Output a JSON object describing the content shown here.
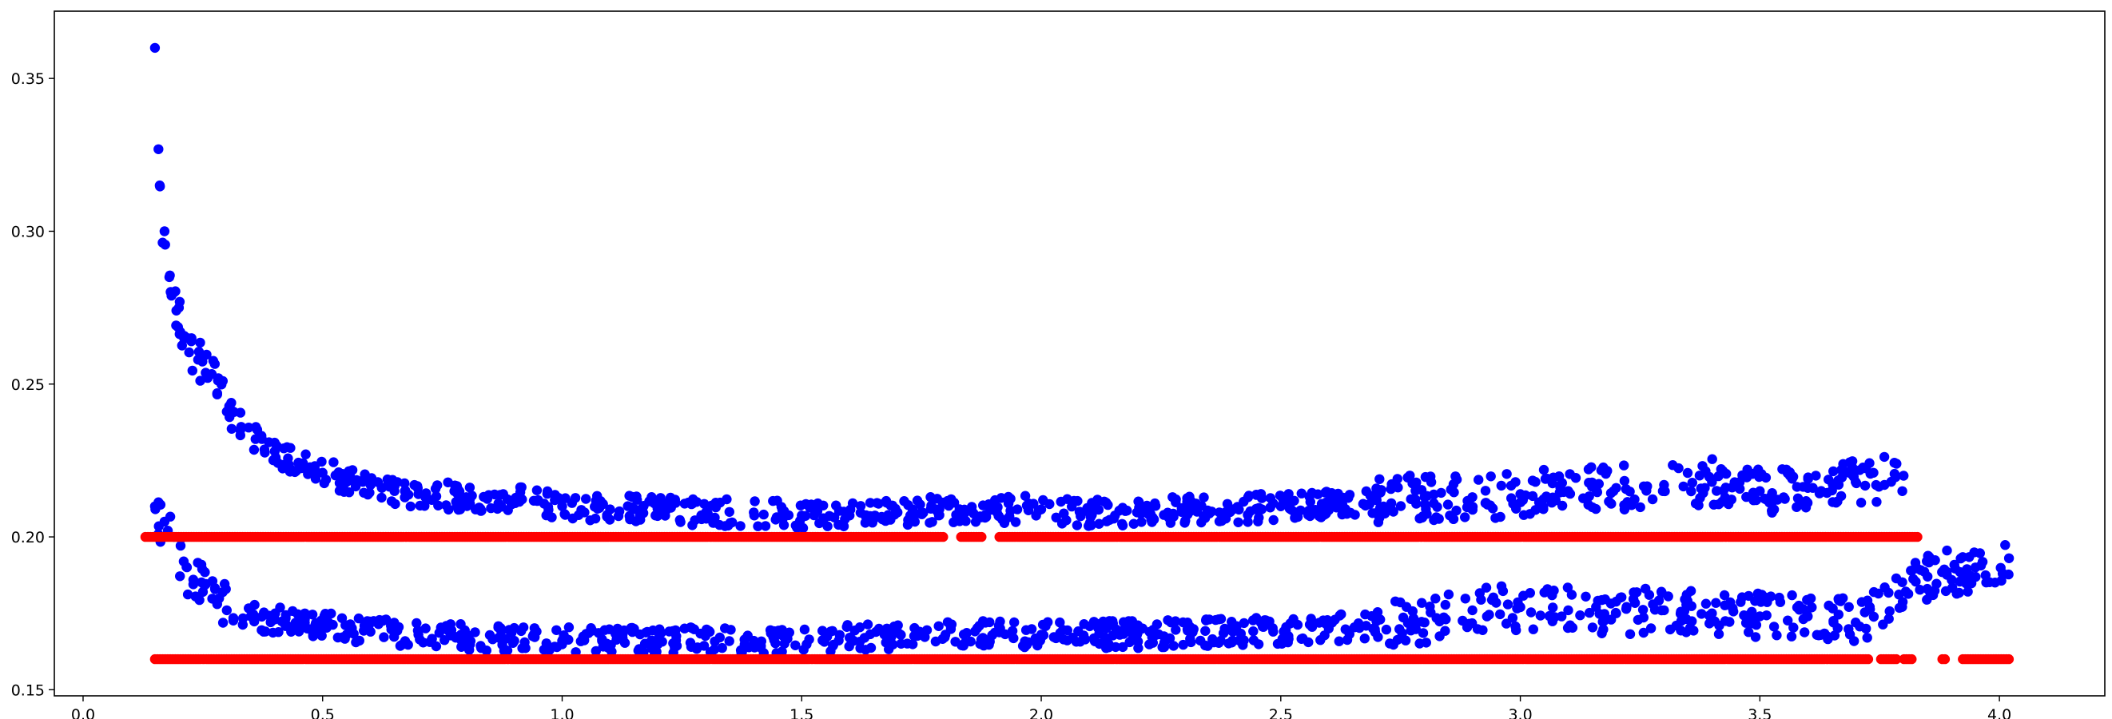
{
  "chart_data": {
    "type": "scatter",
    "title": "",
    "xlabel": "",
    "ylabel": "",
    "xlim": [
      -0.06,
      4.22
    ],
    "ylim": [
      0.148,
      0.372
    ],
    "xticks": [
      0.0,
      0.5,
      1.0,
      1.5,
      2.0,
      2.5,
      3.0,
      3.5,
      4.0
    ],
    "xtick_labels": [
      "0.0",
      "0.5",
      "1.0",
      "1.5",
      "2.0",
      "2.5",
      "3.0",
      "3.5",
      "4.0"
    ],
    "yticks": [
      0.15,
      0.2,
      0.25,
      0.3,
      0.35
    ],
    "ytick_labels": [
      "0.15",
      "0.20",
      "0.25",
      "0.30",
      "0.35"
    ],
    "grid": false,
    "legend": "none",
    "series": [
      {
        "color": "#0000ff",
        "description_points": "upper band of blue points (approximate centerline)",
        "x": [
          0.15,
          0.16,
          0.17,
          0.18,
          0.19,
          0.2,
          0.22,
          0.24,
          0.26,
          0.28,
          0.3,
          0.33,
          0.36,
          0.4,
          0.45,
          0.5,
          0.55,
          0.6,
          0.65,
          0.7,
          0.8,
          0.9,
          0.95,
          1.0,
          1.1,
          1.2,
          1.3,
          1.4,
          1.5,
          1.6,
          1.7,
          1.78,
          1.95,
          2.0,
          2.1,
          2.2,
          2.3,
          2.4,
          2.5,
          2.6,
          2.7,
          2.8,
          2.9,
          3.0,
          3.1,
          3.2,
          3.3,
          3.4,
          3.5,
          3.6,
          3.7,
          3.8
        ],
        "y": [
          0.36,
          0.315,
          0.3,
          0.285,
          0.28,
          0.275,
          0.265,
          0.258,
          0.252,
          0.247,
          0.241,
          0.236,
          0.232,
          0.228,
          0.224,
          0.221,
          0.219,
          0.217,
          0.215,
          0.214,
          0.213,
          0.212,
          0.212,
          0.21,
          0.209,
          0.209,
          0.208,
          0.208,
          0.207,
          0.207,
          0.208,
          0.209,
          0.209,
          0.209,
          0.208,
          0.208,
          0.209,
          0.209,
          0.21,
          0.211,
          0.212,
          0.213,
          0.213,
          0.214,
          0.215,
          0.216,
          0.217,
          0.218,
          0.215,
          0.216,
          0.218,
          0.22
        ]
      },
      {
        "color": "#0000ff",
        "description_points": "lower band of blue points (approximate centerline)",
        "x": [
          0.15,
          0.17,
          0.19,
          0.21,
          0.23,
          0.25,
          0.28,
          0.3,
          0.35,
          0.4,
          0.5,
          0.6,
          0.7,
          0.8,
          0.9,
          1.0,
          1.2,
          1.4,
          1.6,
          1.8,
          2.0,
          2.2,
          2.4,
          2.6,
          2.8,
          2.9,
          3.0,
          3.1,
          3.2,
          3.3,
          3.4,
          3.5,
          3.6,
          3.7,
          3.85,
          3.95,
          4.02
        ],
        "y": [
          0.21,
          0.205,
          0.2,
          0.192,
          0.186,
          0.182,
          0.178,
          0.176,
          0.174,
          0.173,
          0.171,
          0.169,
          0.168,
          0.167,
          0.166,
          0.166,
          0.166,
          0.166,
          0.167,
          0.168,
          0.168,
          0.168,
          0.169,
          0.17,
          0.172,
          0.176,
          0.177,
          0.176,
          0.175,
          0.176,
          0.175,
          0.174,
          0.174,
          0.172,
          0.187,
          0.19,
          0.193
        ]
      },
      {
        "color": "#ff0000",
        "description_points": "horizontal red line of points at 0.20",
        "x_range": [
          0.13,
          3.83
        ],
        "y": 0.2,
        "gaps": [
          [
            1.8,
            1.83
          ],
          [
            1.88,
            1.91
          ]
        ]
      },
      {
        "color": "#ff0000",
        "description_points": "horizontal red line of points at 0.16",
        "x_range": [
          0.15,
          4.02
        ],
        "y": 0.16,
        "gaps": [
          [
            3.73,
            3.75
          ],
          [
            3.79,
            3.8
          ],
          [
            3.82,
            3.88
          ],
          [
            3.89,
            3.92
          ]
        ]
      }
    ]
  }
}
